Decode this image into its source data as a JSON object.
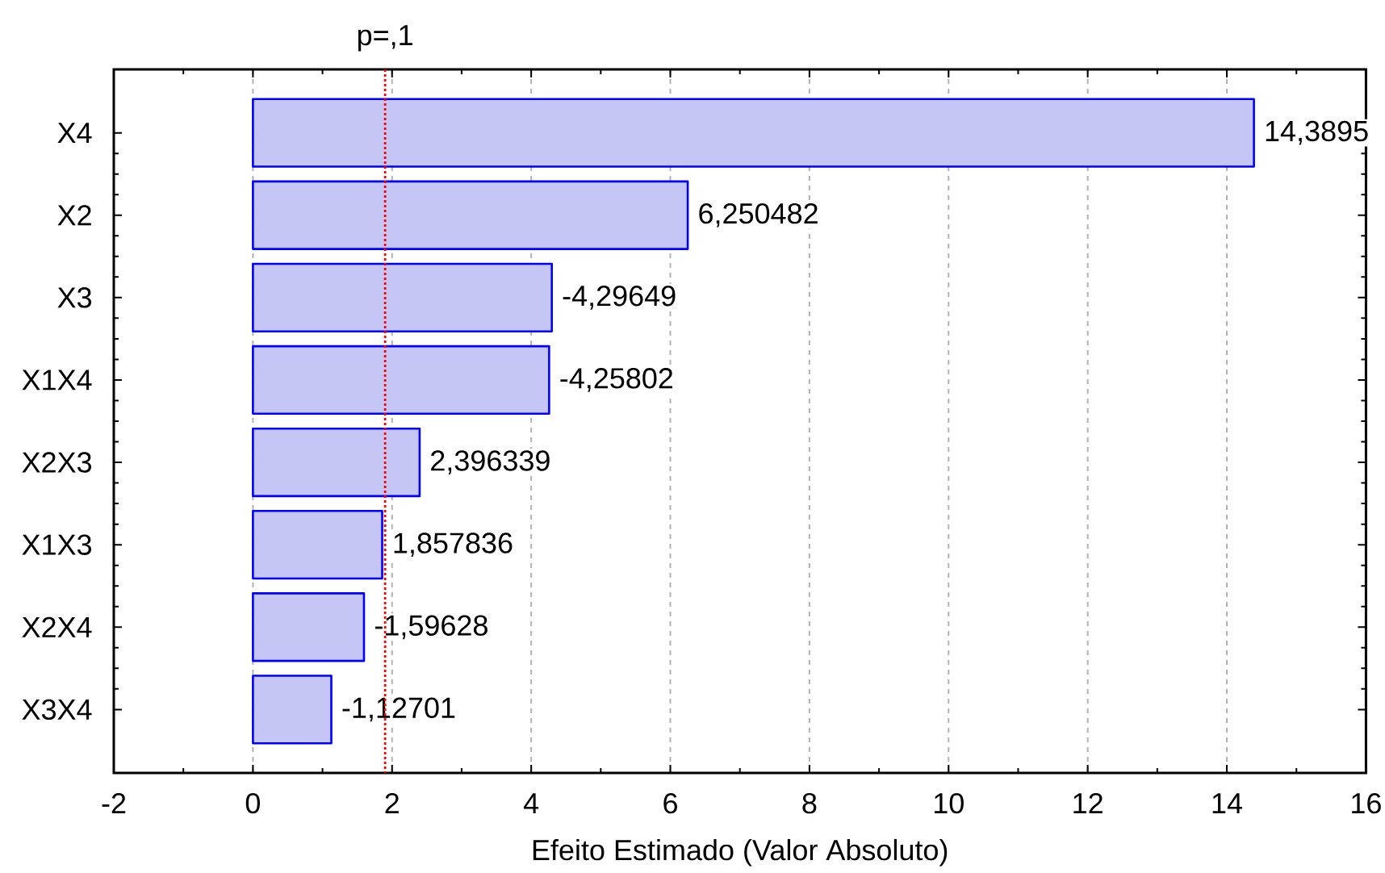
{
  "chart_data": {
    "type": "bar",
    "orientation": "horizontal",
    "xlabel": "Efeito Estimado (Valor Absoluto)",
    "categories": [
      "X4",
      "X2",
      "X3",
      "X1X4",
      "X2X3",
      "X1X3",
      "X2X4",
      "X3X4"
    ],
    "values": [
      14.3895,
      6.250482,
      4.29649,
      4.25802,
      2.396339,
      1.857836,
      1.59628,
      1.12701
    ],
    "value_labels": [
      "14,3895",
      "6,250482",
      "-4,29649",
      "-4,25802",
      "2,396339",
      "1,857836",
      "-1,59628",
      "-1,12701"
    ],
    "color": "#c6c6f6",
    "xlim": [
      -2,
      16
    ],
    "xticks": [
      -2,
      0,
      2,
      4,
      6,
      8,
      10,
      12,
      14,
      16
    ],
    "grid": "x",
    "ref_lines": [
      {
        "axis": "x",
        "value": 1.9,
        "label": "p=,1",
        "color": "#ff0000",
        "line_style": "dotted"
      }
    ]
  }
}
